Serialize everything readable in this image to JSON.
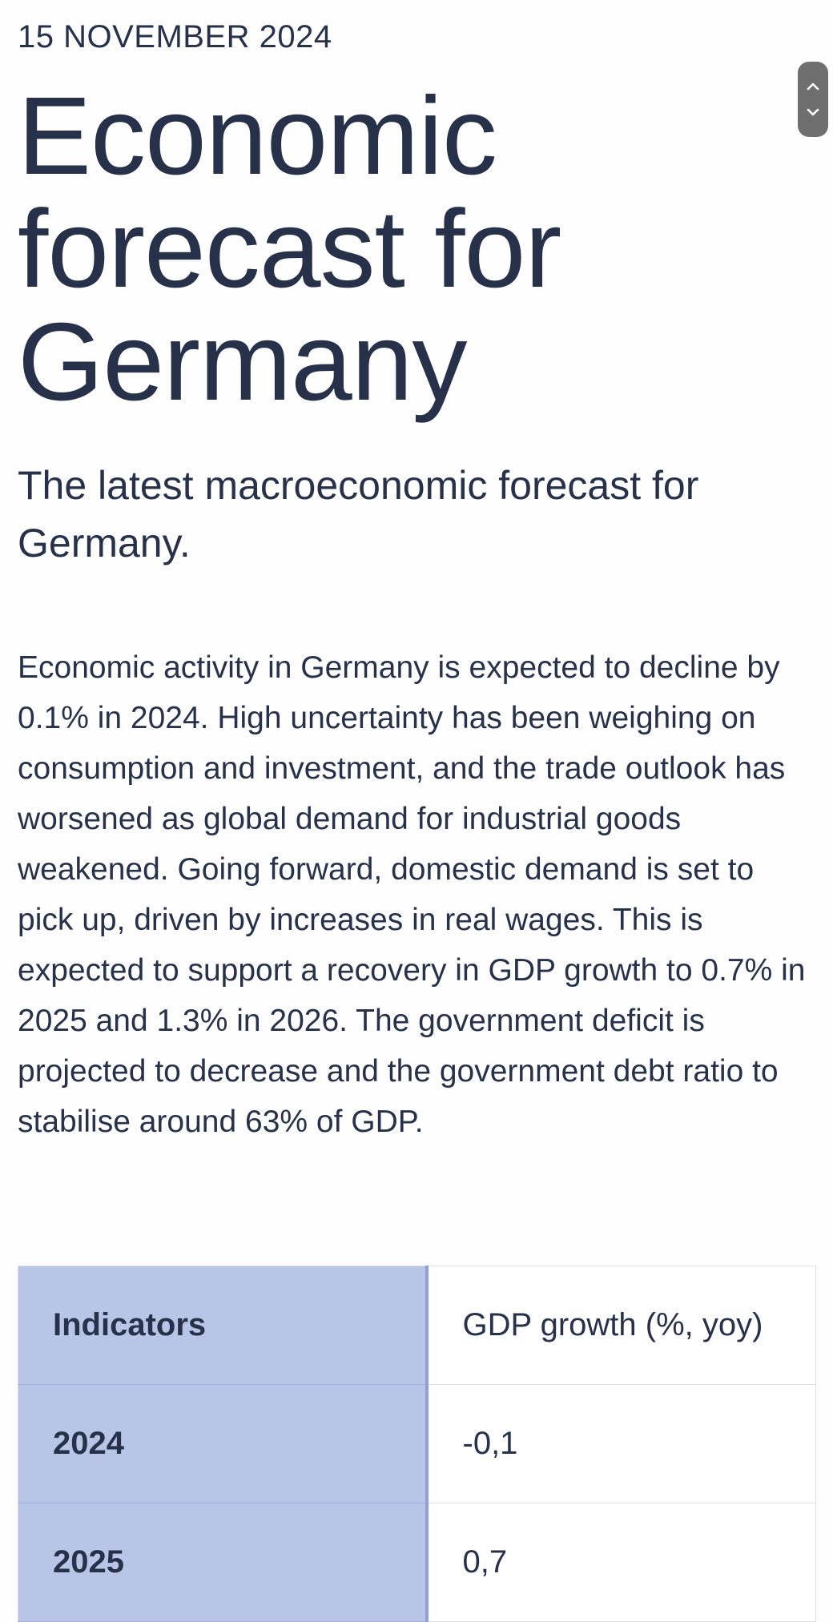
{
  "article": {
    "date": "15 NOVEMBER 2024",
    "title": "Economic forecast for Germany",
    "subtitle": "The latest macroeconomic forecast for Germany.",
    "body": "Economic activity in Germany is expected to decline by 0.1% in 2024. High uncertainty has been weighing on consumption and investment, and the trade outlook has worsened as global demand for industrial goods weakened. Going forward, domestic demand is set to pick up, driven by increases in real wages. This is expected to support a recovery in GDP growth to 0.7% in 2025 and 1.3% in 2026. The government deficit is projected to decrease and the government debt ratio to stabilise around 63% of GDP."
  },
  "table": {
    "header": {
      "key": "Indicators",
      "value": "GDP growth (%, yoy)"
    },
    "rows": [
      {
        "key": "2024",
        "value": "-0,1"
      },
      {
        "key": "2025",
        "value": "0,7"
      }
    ]
  },
  "scroll_control": {
    "up_icon": "chevron-up-icon",
    "down_icon": "chevron-down-icon"
  }
}
